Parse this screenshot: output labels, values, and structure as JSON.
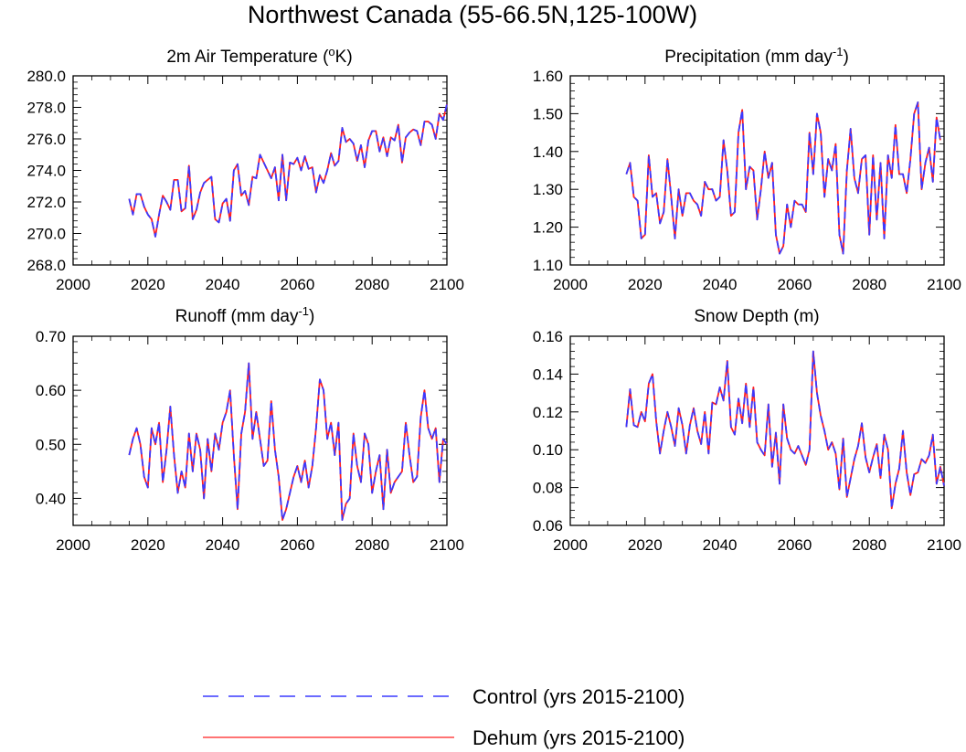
{
  "figure_title": "Northwest Canada (55-66.5N,125-100W)",
  "legend": {
    "entries": [
      {
        "label": "Control (yrs 2015-2100)",
        "color": "#3a3aff",
        "style": "dashed"
      },
      {
        "label": "Dehum (yrs 2015-2100)",
        "color": "#ff2020",
        "style": "solid"
      }
    ],
    "placement": "bottom-center"
  },
  "chart_data": [
    {
      "type": "line",
      "title": "2m Air Temperature (",
      "title_sup": "o",
      "title_suffix": "K)",
      "xlim": [
        2000,
        2100
      ],
      "ylim": [
        268.0,
        280.0
      ],
      "xticks": [
        "2000",
        "2020",
        "2040",
        "2060",
        "2080",
        "2100"
      ],
      "yticks": [
        "268.0",
        "270.0",
        "272.0",
        "274.0",
        "276.0",
        "278.0",
        "280.0"
      ],
      "x_start": 2015,
      "series": [
        {
          "name": "Control (yrs 2015-2100)",
          "color": "#3a3aff",
          "dash": "8,5",
          "values": [
            272.2,
            271.2,
            272.5,
            272.5,
            271.7,
            271.2,
            270.9,
            269.8,
            271.2,
            272.4,
            272.0,
            271.5,
            273.4,
            273.4,
            271.4,
            271.6,
            274.3,
            270.9,
            271.5,
            272.6,
            273.2,
            273.4,
            273.6,
            270.9,
            270.7,
            271.9,
            272.2,
            270.8,
            274.0,
            274.4,
            272.4,
            272.7,
            271.8,
            273.6,
            273.5,
            275.0,
            274.5,
            274.0,
            273.5,
            274.2,
            272.1,
            275.0,
            272.1,
            274.5,
            274.4,
            274.8,
            274.0,
            274.9,
            274.1,
            274.2,
            272.6,
            273.7,
            273.2,
            274.0,
            275.1,
            274.3,
            274.6,
            276.7,
            275.8,
            276.0,
            275.7,
            274.6,
            275.6,
            274.2,
            275.9,
            276.5,
            276.5,
            275.2,
            276.1,
            274.9,
            276.1,
            275.9,
            276.9,
            274.5,
            276.1,
            276.4,
            276.6,
            276.5,
            275.6,
            277.1,
            277.1,
            276.9,
            276.0,
            277.6,
            277.2,
            278.2
          ]
        },
        {
          "name": "Dehum (yrs 2015-2100)",
          "color": "#ff2020",
          "dash": "",
          "values": [
            272.2,
            271.2,
            272.5,
            272.5,
            271.7,
            271.2,
            270.9,
            269.8,
            271.2,
            272.4,
            272.0,
            271.5,
            273.4,
            273.4,
            271.4,
            271.6,
            274.3,
            270.9,
            271.5,
            272.6,
            273.2,
            273.4,
            273.6,
            270.9,
            270.7,
            271.9,
            272.2,
            270.8,
            274.0,
            274.4,
            272.4,
            272.7,
            271.8,
            273.6,
            273.5,
            275.0,
            274.5,
            274.0,
            273.5,
            274.2,
            272.1,
            275.0,
            272.1,
            274.5,
            274.4,
            274.8,
            274.0,
            274.9,
            274.1,
            274.2,
            272.6,
            273.7,
            273.2,
            274.0,
            275.1,
            274.3,
            274.6,
            276.7,
            275.8,
            276.0,
            275.7,
            274.6,
            275.6,
            274.2,
            275.9,
            276.5,
            276.5,
            275.2,
            276.1,
            274.9,
            276.1,
            275.9,
            276.9,
            274.5,
            276.1,
            276.4,
            276.6,
            276.5,
            275.6,
            277.1,
            277.1,
            276.9,
            276.0,
            277.6,
            277.2,
            278.2
          ]
        }
      ]
    },
    {
      "type": "line",
      "title": "Precipitation (mm day",
      "title_sup": "-1",
      "title_suffix": ")",
      "xlim": [
        2000,
        2100
      ],
      "ylim": [
        1.1,
        1.6
      ],
      "xticks": [
        "2000",
        "2020",
        "2040",
        "2060",
        "2080",
        "2100"
      ],
      "yticks": [
        "1.10",
        "1.20",
        "1.30",
        "1.40",
        "1.50",
        "1.60"
      ],
      "x_start": 2015,
      "series": [
        {
          "name": "Control (yrs 2015-2100)",
          "color": "#3a3aff",
          "dash": "8,5",
          "values": [
            1.34,
            1.37,
            1.28,
            1.27,
            1.17,
            1.18,
            1.39,
            1.28,
            1.29,
            1.21,
            1.24,
            1.38,
            1.28,
            1.17,
            1.3,
            1.23,
            1.29,
            1.29,
            1.27,
            1.26,
            1.23,
            1.32,
            1.3,
            1.3,
            1.27,
            1.28,
            1.43,
            1.35,
            1.23,
            1.24,
            1.45,
            1.51,
            1.3,
            1.36,
            1.35,
            1.22,
            1.3,
            1.4,
            1.33,
            1.37,
            1.18,
            1.13,
            1.15,
            1.26,
            1.2,
            1.27,
            1.26,
            1.26,
            1.24,
            1.45,
            1.34,
            1.5,
            1.45,
            1.28,
            1.38,
            1.35,
            1.42,
            1.18,
            1.13,
            1.35,
            1.46,
            1.33,
            1.29,
            1.38,
            1.39,
            1.18,
            1.39,
            1.22,
            1.37,
            1.17,
            1.39,
            1.33,
            1.47,
            1.34,
            1.34,
            1.29,
            1.38,
            1.5,
            1.53,
            1.3,
            1.37,
            1.41,
            1.32,
            1.49,
            1.43
          ]
        },
        {
          "name": "Dehum (yrs 2015-2100)",
          "color": "#ff2020",
          "dash": "",
          "values": [
            1.34,
            1.37,
            1.28,
            1.27,
            1.17,
            1.18,
            1.39,
            1.28,
            1.29,
            1.21,
            1.24,
            1.38,
            1.28,
            1.17,
            1.3,
            1.23,
            1.29,
            1.29,
            1.27,
            1.26,
            1.23,
            1.32,
            1.3,
            1.3,
            1.27,
            1.28,
            1.43,
            1.35,
            1.23,
            1.24,
            1.45,
            1.51,
            1.3,
            1.36,
            1.35,
            1.22,
            1.3,
            1.4,
            1.33,
            1.37,
            1.18,
            1.13,
            1.15,
            1.26,
            1.2,
            1.27,
            1.26,
            1.26,
            1.24,
            1.45,
            1.34,
            1.5,
            1.45,
            1.28,
            1.38,
            1.35,
            1.42,
            1.18,
            1.13,
            1.35,
            1.46,
            1.33,
            1.29,
            1.38,
            1.39,
            1.18,
            1.39,
            1.22,
            1.37,
            1.17,
            1.39,
            1.33,
            1.47,
            1.34,
            1.34,
            1.29,
            1.38,
            1.5,
            1.53,
            1.3,
            1.37,
            1.41,
            1.32,
            1.49,
            1.43
          ]
        }
      ]
    },
    {
      "type": "line",
      "title": "Runoff (mm day",
      "title_sup": "-1",
      "title_suffix": ")",
      "xlim": [
        2000,
        2100
      ],
      "ylim": [
        0.35,
        0.7
      ],
      "xticks": [
        "2000",
        "2020",
        "2040",
        "2060",
        "2080",
        "2100"
      ],
      "yticks": [
        "0.40",
        "0.50",
        "0.60",
        "0.70"
      ],
      "ytick_values": [
        0.4,
        0.5,
        0.6,
        0.7
      ],
      "x_start": 2015,
      "series": [
        {
          "name": "Control (yrs 2015-2100)",
          "color": "#3a3aff",
          "dash": "8,5",
          "values": [
            0.48,
            0.51,
            0.53,
            0.5,
            0.44,
            0.42,
            0.53,
            0.5,
            0.54,
            0.43,
            0.49,
            0.57,
            0.48,
            0.41,
            0.45,
            0.42,
            0.52,
            0.45,
            0.52,
            0.49,
            0.4,
            0.51,
            0.45,
            0.52,
            0.49,
            0.54,
            0.56,
            0.6,
            0.48,
            0.38,
            0.52,
            0.56,
            0.65,
            0.51,
            0.56,
            0.51,
            0.46,
            0.47,
            0.58,
            0.49,
            0.44,
            0.36,
            0.38,
            0.41,
            0.44,
            0.46,
            0.43,
            0.47,
            0.42,
            0.46,
            0.53,
            0.62,
            0.6,
            0.51,
            0.54,
            0.48,
            0.54,
            0.36,
            0.39,
            0.4,
            0.52,
            0.46,
            0.43,
            0.52,
            0.5,
            0.41,
            0.45,
            0.48,
            0.38,
            0.49,
            0.41,
            0.43,
            0.44,
            0.45,
            0.54,
            0.48,
            0.43,
            0.44,
            0.55,
            0.6,
            0.53,
            0.51,
            0.53,
            0.43,
            0.51,
            0.5
          ]
        },
        {
          "name": "Dehum (yrs 2015-2100)",
          "color": "#ff2020",
          "dash": "",
          "values": [
            0.48,
            0.51,
            0.53,
            0.5,
            0.44,
            0.42,
            0.53,
            0.5,
            0.54,
            0.43,
            0.49,
            0.57,
            0.48,
            0.41,
            0.45,
            0.42,
            0.52,
            0.45,
            0.52,
            0.49,
            0.4,
            0.51,
            0.45,
            0.52,
            0.49,
            0.54,
            0.56,
            0.6,
            0.48,
            0.38,
            0.52,
            0.56,
            0.65,
            0.51,
            0.56,
            0.51,
            0.46,
            0.47,
            0.58,
            0.49,
            0.44,
            0.36,
            0.38,
            0.41,
            0.44,
            0.46,
            0.43,
            0.47,
            0.42,
            0.46,
            0.53,
            0.62,
            0.6,
            0.51,
            0.54,
            0.48,
            0.54,
            0.36,
            0.39,
            0.4,
            0.52,
            0.46,
            0.43,
            0.52,
            0.5,
            0.41,
            0.45,
            0.48,
            0.38,
            0.49,
            0.41,
            0.43,
            0.44,
            0.45,
            0.54,
            0.48,
            0.43,
            0.44,
            0.55,
            0.6,
            0.53,
            0.51,
            0.53,
            0.43,
            0.51,
            0.5
          ]
        }
      ]
    },
    {
      "type": "line",
      "title": "Snow Depth (m)",
      "title_sup": "",
      "title_suffix": "",
      "xlim": [
        2000,
        2100
      ],
      "ylim": [
        0.06,
        0.16
      ],
      "xticks": [
        "2000",
        "2020",
        "2040",
        "2060",
        "2080",
        "2100"
      ],
      "yticks": [
        "0.06",
        "0.08",
        "0.10",
        "0.12",
        "0.14",
        "0.16"
      ],
      "x_start": 2015,
      "series": [
        {
          "name": "Control (yrs 2015-2100)",
          "color": "#3a3aff",
          "dash": "8,5",
          "values": [
            0.112,
            0.132,
            0.113,
            0.112,
            0.12,
            0.115,
            0.135,
            0.14,
            0.115,
            0.098,
            0.11,
            0.12,
            0.112,
            0.102,
            0.122,
            0.113,
            0.098,
            0.113,
            0.122,
            0.11,
            0.103,
            0.12,
            0.098,
            0.125,
            0.124,
            0.133,
            0.126,
            0.147,
            0.112,
            0.108,
            0.127,
            0.114,
            0.135,
            0.112,
            0.133,
            0.104,
            0.1,
            0.097,
            0.124,
            0.091,
            0.109,
            0.082,
            0.124,
            0.106,
            0.1,
            0.098,
            0.102,
            0.097,
            0.092,
            0.1,
            0.152,
            0.13,
            0.118,
            0.11,
            0.1,
            0.104,
            0.098,
            0.079,
            0.106,
            0.075,
            0.085,
            0.095,
            0.102,
            0.114,
            0.096,
            0.088,
            0.096,
            0.103,
            0.085,
            0.108,
            0.1,
            0.069,
            0.082,
            0.09,
            0.11,
            0.088,
            0.076,
            0.087,
            0.088,
            0.095,
            0.093,
            0.097,
            0.108,
            0.082,
            0.091,
            0.081
          ]
        },
        {
          "name": "Dehum (yrs 2015-2100)",
          "color": "#ff2020",
          "dash": "",
          "values": [
            0.112,
            0.132,
            0.113,
            0.112,
            0.12,
            0.115,
            0.135,
            0.14,
            0.115,
            0.098,
            0.11,
            0.12,
            0.112,
            0.102,
            0.122,
            0.113,
            0.098,
            0.113,
            0.122,
            0.11,
            0.103,
            0.12,
            0.098,
            0.125,
            0.124,
            0.133,
            0.126,
            0.147,
            0.112,
            0.108,
            0.127,
            0.114,
            0.135,
            0.112,
            0.133,
            0.104,
            0.1,
            0.097,
            0.124,
            0.091,
            0.109,
            0.082,
            0.124,
            0.106,
            0.1,
            0.098,
            0.102,
            0.097,
            0.092,
            0.1,
            0.152,
            0.13,
            0.118,
            0.11,
            0.1,
            0.104,
            0.098,
            0.079,
            0.106,
            0.075,
            0.085,
            0.095,
            0.102,
            0.114,
            0.096,
            0.088,
            0.096,
            0.103,
            0.085,
            0.108,
            0.1,
            0.069,
            0.082,
            0.09,
            0.11,
            0.088,
            0.076,
            0.087,
            0.088,
            0.095,
            0.093,
            0.097,
            0.108,
            0.082,
            0.091,
            0.081
          ]
        }
      ]
    }
  ]
}
